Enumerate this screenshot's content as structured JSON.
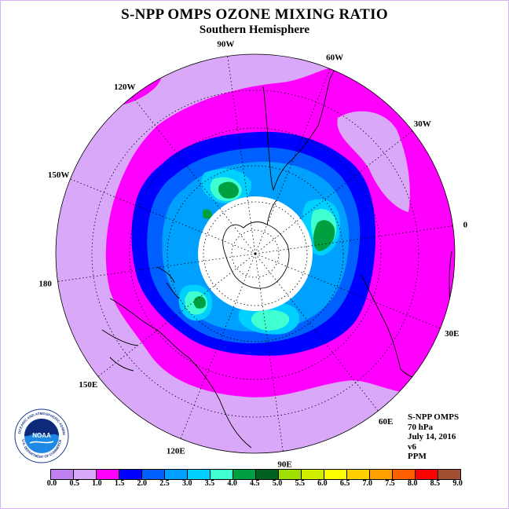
{
  "header": {
    "title": "S-NPP OMPS OZONE MIXING RATIO",
    "subtitle": "Southern Hemisphere"
  },
  "map": {
    "projection": "south polar stereographic",
    "center": "South Pole",
    "longitude_labels": [
      "90W",
      "60W",
      "30W",
      "0",
      "30E",
      "60E",
      "90E",
      "120E",
      "150E",
      "180",
      "150W",
      "120W"
    ],
    "features": [
      "Antarctica",
      "South America",
      "Africa",
      "Australia",
      "New Zealand"
    ],
    "no_data_region": "polar night (white disk)"
  },
  "info": {
    "instrument": "S-NPP OMPS",
    "pressure_level": "70 hPa",
    "date": "July 14, 2016",
    "version": "v6",
    "units": "PPM"
  },
  "colorbar": {
    "tick_labels": [
      "0.0",
      "0.5",
      "1.0",
      "1.5",
      "2.0",
      "2.5",
      "3.0",
      "3.5",
      "4.0",
      "4.5",
      "5.0",
      "5.5",
      "6.0",
      "6.5",
      "7.0",
      "7.5",
      "8.0",
      "8.5",
      "9.0"
    ],
    "colors": [
      "#c080f0",
      "#d9a8f8",
      "#ff00ff",
      "#0000ff",
      "#0060ff",
      "#00a0ff",
      "#00d0ff",
      "#40ffd0",
      "#00a040",
      "#006020",
      "#a0e000",
      "#d0f000",
      "#ffff00",
      "#ffd000",
      "#ffa000",
      "#ff6000",
      "#ff0000",
      "#a05030"
    ]
  },
  "logo": {
    "text": "NOAA",
    "ring_text": "NATIONAL OCEANIC AND ATMOSPHERIC ADMINISTRATION",
    "ring_text_bottom": "U.S. DEPARTMENT OF COMMERCE"
  }
}
